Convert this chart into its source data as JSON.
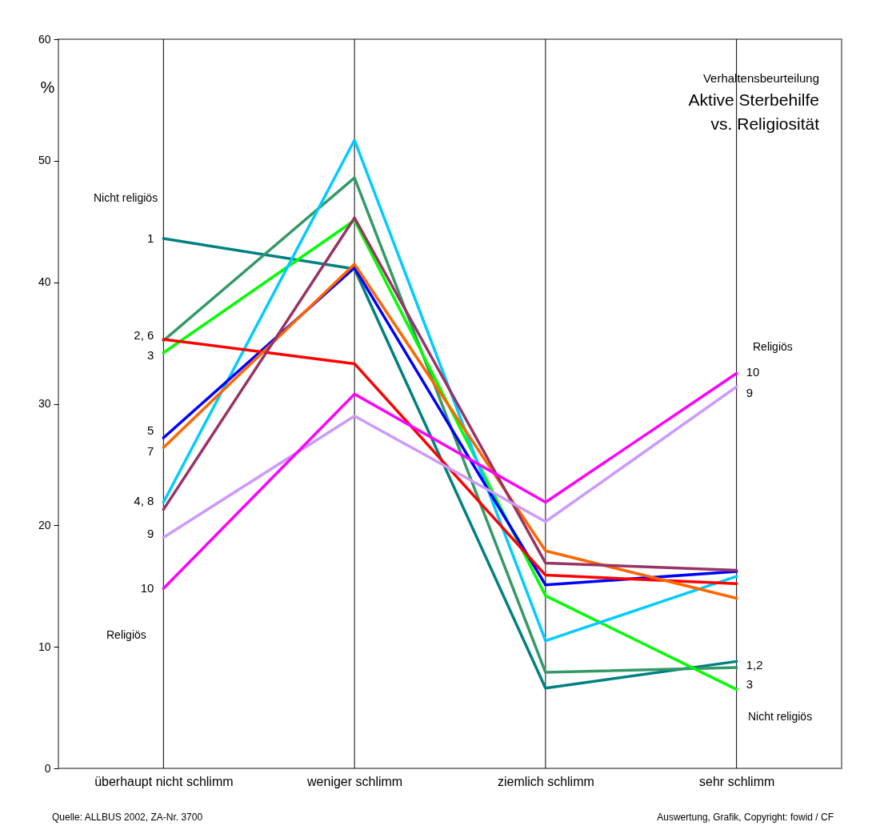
{
  "chart_data": {
    "type": "line",
    "title": "Aktive Sterbehilfe\nvs. Religiosität",
    "subtitle": "Verhaltensbeurteilung",
    "ylabel": "%",
    "categories": [
      "überhaupt nicht schlimm",
      "weniger schlimm",
      "ziemlich schlimm",
      "sehr schlimm"
    ],
    "series": [
      {
        "color": "#008080",
        "values": [
          43.6,
          41.1,
          6.6,
          8.8
        ]
      },
      {
        "color": "#339966",
        "values": [
          35.2,
          48.6,
          7.9,
          8.3
        ]
      },
      {
        "color": "#00ff00",
        "values": [
          34.2,
          45.1,
          14.2,
          6.5
        ]
      },
      {
        "color": "#00ccff",
        "values": [
          21.9,
          51.7,
          10.5,
          15.8
        ]
      },
      {
        "color": "#0000ff",
        "values": [
          27.2,
          41.2,
          15.1,
          16.2
        ]
      },
      {
        "color": "#ff0000",
        "values": [
          35.3,
          33.3,
          15.9,
          15.2
        ]
      },
      {
        "color": "#ff6600",
        "values": [
          26.4,
          41.5,
          17.9,
          14.0
        ]
      },
      {
        "color": "#993366",
        "values": [
          21.3,
          45.3,
          16.9,
          16.3
        ]
      },
      {
        "color": "#cc99ff",
        "values": [
          19.0,
          29.0,
          20.3,
          31.4
        ]
      },
      {
        "color": "#ff00ff",
        "values": [
          14.8,
          30.8,
          21.9,
          32.5
        ]
      }
    ],
    "ylim": [
      0,
      60
    ],
    "yticks": [
      0,
      10,
      20,
      30,
      40,
      50,
      60
    ],
    "grid": "x",
    "legend": false,
    "marker": "none",
    "annotations": [
      "Nicht religiös",
      "Religiös",
      "Religiös",
      "Nicht religiös",
      {
        "text": "1",
        "x": "überhaupt nicht schlimm",
        "y": 43.6
      },
      {
        "text": "2, 6",
        "x": "überhaupt nicht schlimm",
        "y": 35.6
      },
      {
        "text": "3",
        "x": "überhaupt nicht schlimm",
        "y": 34.0
      },
      {
        "text": "5",
        "x": "überhaupt nicht schlimm",
        "y": 27.8
      },
      {
        "text": "7",
        "x": "überhaupt nicht schlimm",
        "y": 26.1
      },
      {
        "text": "4, 8",
        "x": "überhaupt nicht schlimm",
        "y": 22.0
      },
      {
        "text": "9",
        "x": "überhaupt nicht schlimm",
        "y": 19.3
      },
      {
        "text": "10",
        "x": "überhaupt nicht schlimm",
        "y": 14.8
      },
      {
        "text": "10",
        "x": "sehr schlimm",
        "y": 32.6
      },
      {
        "text": "9",
        "x": "sehr schlimm",
        "y": 30.9
      },
      {
        "text": "1,2",
        "x": "sehr schlimm",
        "y": 8.5
      },
      {
        "text": "3",
        "x": "sehr schlimm",
        "y": 6.9
      },
      "Quelle: ALLBUS 2002, ZA-Nr. 3700",
      "Auswertung, Grafik, Copyright: fowid / CF"
    ]
  }
}
